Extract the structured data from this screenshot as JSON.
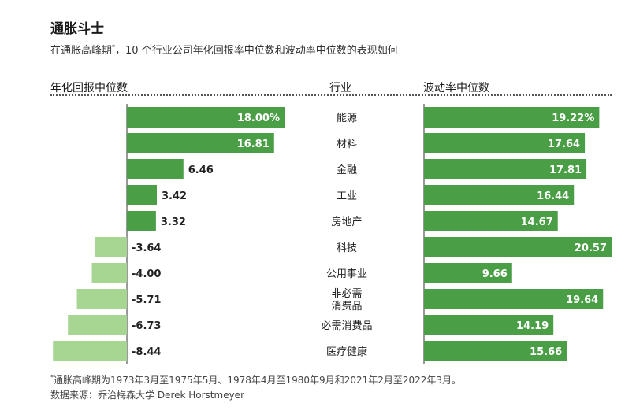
{
  "title": "通胀斗士",
  "subtitle": "在通胀高峰期*，10 个行业公司年化回报率中位数和波动率中位数的表现如何",
  "subtitle_parts": {
    "pre": "在通胀高峰期",
    "mark": "*",
    "post": "，10 个行业公司年化回报率中位数和波动率中位数的表现如何"
  },
  "column_headers": {
    "left": "年化回报中位数",
    "middle": "行业",
    "right": "波动率中位数"
  },
  "footnote": {
    "mark": "*",
    "text": "通胀高峰期为1973年3月至1975年5月、1978年4月至1980年9月和2021年2月至2022年3月。"
  },
  "source": "数据来源：乔治梅森大学 Derek Horstmeyer",
  "colors": {
    "positive": "#4a9e45",
    "negative": "#a6d691",
    "text_on_bar": "#ffffff",
    "axis": "#333333"
  },
  "chart_data": [
    {
      "type": "bar",
      "orientation": "horizontal",
      "title": "年化回报中位数",
      "categories": [
        "能源",
        "材料",
        "金融",
        "工业",
        "房地产",
        "科技",
        "公用事业",
        "非必需消费品",
        "必需消费品",
        "医疗健康"
      ],
      "category_display": [
        [
          "能源"
        ],
        [
          "材料"
        ],
        [
          "金融"
        ],
        [
          "工业"
        ],
        [
          "房地产"
        ],
        [
          "科技"
        ],
        [
          "公用事业"
        ],
        [
          "非必需",
          "消费品"
        ],
        [
          "必需消费品"
        ],
        [
          "医疗健康"
        ]
      ],
      "values": [
        18.0,
        16.81,
        6.46,
        3.42,
        3.32,
        -3.64,
        -4.0,
        -5.71,
        -6.73,
        -8.44
      ],
      "labels": [
        "18.00%",
        "16.81",
        "6.46",
        "3.42",
        "3.32",
        "-3.64",
        "-4.00",
        "-5.71",
        "-6.73",
        "-8.44"
      ],
      "unit": "%"
    },
    {
      "type": "bar",
      "orientation": "horizontal",
      "title": "波动率中位数",
      "categories": [
        "能源",
        "材料",
        "金融",
        "工业",
        "房地产",
        "科技",
        "公用事业",
        "非必需消费品",
        "必需消费品",
        "医疗健康"
      ],
      "values": [
        19.22,
        17.64,
        17.81,
        16.44,
        14.67,
        20.57,
        9.66,
        19.64,
        14.19,
        15.66
      ],
      "labels": [
        "19.22%",
        "17.64",
        "17.81",
        "16.44",
        "14.67",
        "20.57",
        "9.66",
        "19.64",
        "14.19",
        "15.66"
      ],
      "unit": "%"
    }
  ]
}
